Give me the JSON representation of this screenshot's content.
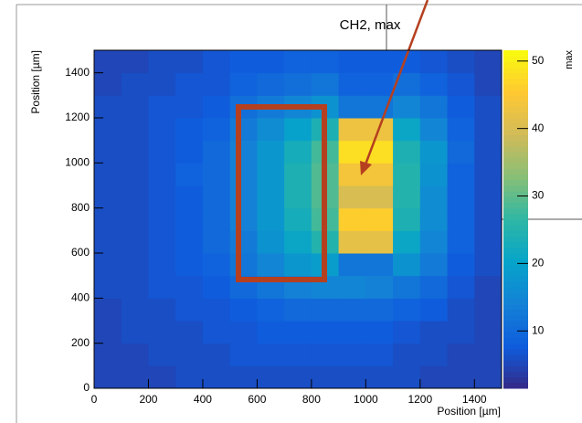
{
  "chart_data": {
    "type": "heatmap",
    "title": "CH2, max",
    "x_label": "Position [µm]",
    "y_label": "Position [µm]",
    "colorbar_label": "max",
    "xbins": [
      0,
      100,
      200,
      300,
      400,
      500,
      600,
      700,
      800,
      900,
      1000,
      1100,
      1200,
      1300,
      1400,
      1500
    ],
    "ybins": [
      0,
      100,
      200,
      300,
      400,
      500,
      600,
      700,
      800,
      900,
      1000,
      1100,
      1200,
      1300,
      1400,
      1500
    ],
    "xlim": [
      0,
      1500
    ],
    "ylim": [
      0,
      1500
    ],
    "zlim": [
      1.5,
      51.6
    ],
    "xticks": [
      0,
      200,
      400,
      600,
      800,
      1000,
      1200,
      1400
    ],
    "yticks": [
      0,
      200,
      400,
      600,
      800,
      1000,
      1200,
      1400
    ],
    "zticks": [
      10,
      20,
      30,
      40,
      50
    ],
    "colorscale": [
      "#352a87",
      "#0f5cdd",
      "#1481d6",
      "#06a4ca",
      "#2eb7a4",
      "#87bf77",
      "#d1bb59",
      "#fec832",
      "#f9fb0e"
    ],
    "z": [
      [
        5,
        5,
        5,
        6,
        6,
        6,
        6,
        6,
        6,
        6,
        6,
        6,
        5,
        5,
        5
      ],
      [
        5,
        5,
        6,
        6,
        6,
        7,
        7,
        7,
        7,
        7,
        7,
        6,
        6,
        5,
        5
      ],
      [
        5,
        6,
        6,
        6,
        7,
        7,
        8,
        8,
        8,
        8,
        8,
        7,
        6,
        6,
        5
      ],
      [
        5,
        6,
        6,
        7,
        7,
        8,
        9,
        10,
        10,
        10,
        10,
        9,
        8,
        6,
        5
      ],
      [
        6,
        6,
        7,
        7,
        8,
        10,
        12,
        14,
        15,
        15,
        14,
        12,
        10,
        7,
        5
      ],
      [
        6,
        6,
        7,
        8,
        9,
        12,
        15,
        18,
        19,
        12,
        12,
        17,
        13,
        8,
        6
      ],
      [
        6,
        6,
        7,
        8,
        10,
        13,
        17,
        21,
        25,
        42,
        42,
        21,
        15,
        9,
        6
      ],
      [
        6,
        6,
        7,
        8,
        10,
        14,
        18,
        23,
        28,
        46,
        46,
        24,
        16,
        9,
        6
      ],
      [
        6,
        6,
        7,
        8,
        10,
        14,
        18,
        24,
        29,
        40,
        40,
        25,
        16,
        9,
        6
      ],
      [
        6,
        6,
        7,
        9,
        10,
        14,
        18,
        24,
        29,
        44,
        44,
        25,
        17,
        9,
        6
      ],
      [
        6,
        6,
        7,
        8,
        10,
        14,
        18,
        23,
        28,
        48,
        48,
        24,
        18,
        10,
        6
      ],
      [
        6,
        6,
        7,
        8,
        9,
        13,
        16,
        20,
        24,
        43,
        43,
        21,
        15,
        9,
        6
      ],
      [
        6,
        6,
        7,
        7,
        8,
        11,
        13,
        15,
        17,
        12,
        12,
        15,
        12,
        8,
        6
      ],
      [
        5,
        6,
        6,
        7,
        7,
        9,
        10,
        11,
        12,
        9,
        9,
        11,
        9,
        7,
        5
      ],
      [
        5,
        5,
        6,
        6,
        7,
        8,
        8,
        9,
        9,
        8,
        8,
        8,
        7,
        6,
        5
      ]
    ]
  }
}
